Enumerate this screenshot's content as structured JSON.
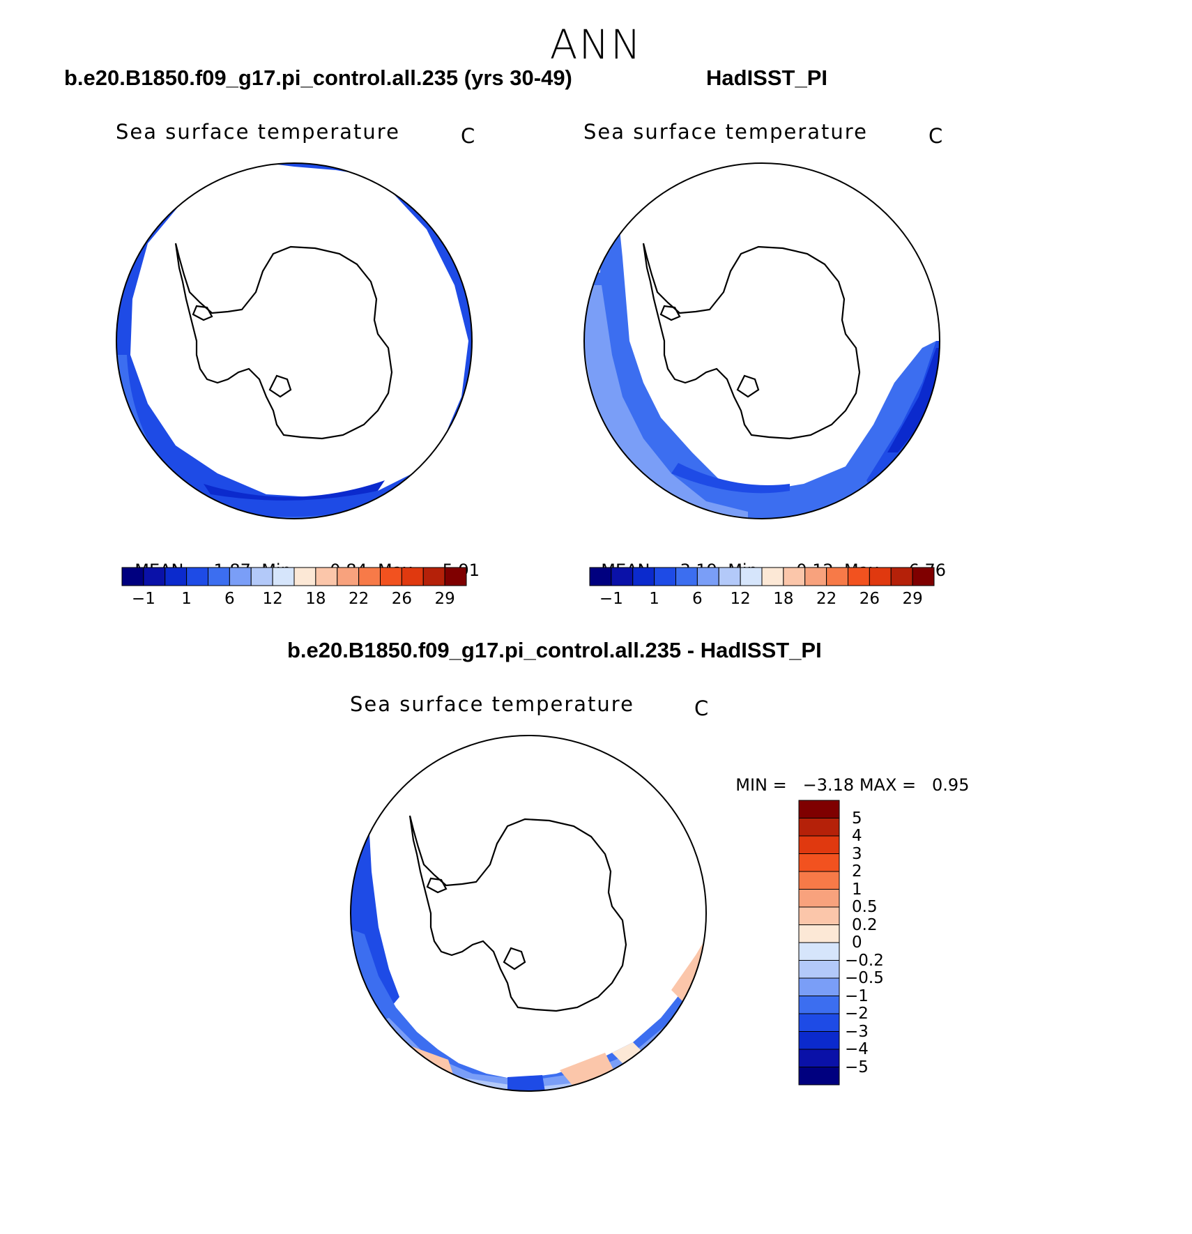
{
  "season": "ANN",
  "panels": [
    {
      "case_title": "b.e20.B1850.f09_g17.pi_control.all.235 (yrs 30-49)",
      "variable": "Sea surface temperature",
      "units": "C",
      "stats": {
        "mean_label": "MEAN=",
        "mean": "1.87",
        "min_label": "Min=",
        "min": "−0.84",
        "max_label": "Max=",
        "max": "5.91"
      }
    },
    {
      "case_title": "HadISST_PI",
      "variable": "Sea surface temperature",
      "units": "C",
      "stats": {
        "mean_label": "MEAN=",
        "mean": "3.19",
        "min_label": "Min=",
        "min": "−0.12",
        "max_label": "Max=",
        "max": "6.76"
      }
    }
  ],
  "colorbar": {
    "colors": [
      "#00007f",
      "#0a11a8",
      "#0b2acd",
      "#1e4be6",
      "#3c6ef0",
      "#7a9ef7",
      "#b3c9f9",
      "#d6e5fb",
      "#fce8d6",
      "#fbc6aa",
      "#f8a27d",
      "#f77a48",
      "#f2521f",
      "#e0390f",
      "#b52109",
      "#7f0000"
    ],
    "ticks": [
      "−1",
      "1",
      "6",
      "12",
      "18",
      "22",
      "26",
      "29"
    ]
  },
  "diff_panel": {
    "case_title": "b.e20.B1850.f09_g17.pi_control.all.235 - HadISST_PI",
    "variable": "Sea surface temperature",
    "units": "C",
    "stats": {
      "min_label": "MIN =",
      "min": "−3.18",
      "max_label": "MAX =",
      "max": "0.95"
    },
    "colorbar": {
      "colors_top_to_bottom": [
        "#7f0000",
        "#b52109",
        "#e0390f",
        "#f2521f",
        "#f77a48",
        "#f8a27d",
        "#fbc6aa",
        "#fce8d6",
        "#d6e5fb",
        "#b3c9f9",
        "#7a9ef7",
        "#3c6ef0",
        "#1e4be6",
        "#0b2acd",
        "#0a11a8",
        "#00007f"
      ],
      "ticks_top_to_bottom": [
        "5",
        "4",
        "3",
        "2",
        "1",
        "0.5",
        "0.2",
        "0",
        "−0.2",
        "−0.5",
        "−1",
        "−2",
        "−3",
        "−4",
        "−5"
      ]
    }
  },
  "map_colors": {
    "deep_blue": "#0b2acd",
    "blue": "#1e4be6",
    "mid_blue": "#3c6ef0",
    "light_blue": "#7a9ef7",
    "pale_blue": "#b3c9f9",
    "very_pale_blue": "#d6e5fb",
    "pale_orange": "#fbc6aa",
    "orange": "#f8a27d",
    "cream": "#fce8d6"
  },
  "icons": [
    "antarctica-coastline"
  ]
}
